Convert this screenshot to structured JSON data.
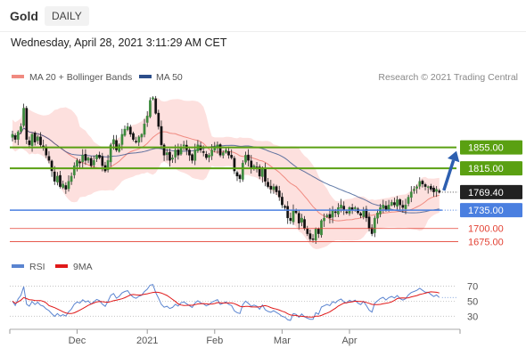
{
  "header": {
    "symbol": "Gold",
    "timeframe": "DAILY",
    "datetime": "Wednesday, April 28, 2021 3:11:29 AM CET"
  },
  "legend": {
    "ma20": {
      "label": "MA 20 + Bollinger Bands",
      "color": "#f08a80"
    },
    "ma50": {
      "label": "MA 50",
      "color": "#2c4e8a"
    },
    "credit": "Research © 2021 Trading Central"
  },
  "colors": {
    "bull": "#3c8a3c",
    "bear": "#111111",
    "band": "#fde0de",
    "resistance": "#5aa012",
    "support": "#4a7fe0",
    "support_minor": "#e34234",
    "arrow": "#2d5fb0",
    "rsi": "#5a84d0",
    "rsi_ma": "#e01818"
  },
  "chart_data": [
    {
      "type": "candlestick",
      "title": "Gold DAILY",
      "x_ticks": [
        "Dec",
        "2021",
        "Feb",
        "Mar",
        "Apr"
      ],
      "ylim": [
        1640,
        1970
      ],
      "overlays": [
        "MA 20 + Bollinger Bands",
        "MA 50"
      ],
      "last_price": 1769.4,
      "levels": [
        {
          "value": 1855.0,
          "label": "1855.00",
          "kind": "resistance"
        },
        {
          "value": 1815.0,
          "label": "1815.00",
          "kind": "resistance"
        },
        {
          "value": 1735.0,
          "label": "1735.00",
          "kind": "support"
        },
        {
          "value": 1700.0,
          "label": "1700.00",
          "kind": "support_minor"
        },
        {
          "value": 1675.0,
          "label": "1675.00",
          "kind": "support_minor"
        }
      ],
      "price_path": [
        1880,
        1870,
        1885,
        1895,
        1930,
        1870,
        1860,
        1880,
        1865,
        1875,
        1860,
        1855,
        1840,
        1830,
        1810,
        1790,
        1800,
        1780,
        1785,
        1775,
        1790,
        1800,
        1820,
        1830,
        1825,
        1840,
        1830,
        1835,
        1820,
        1830,
        1840,
        1835,
        1820,
        1810,
        1830,
        1860,
        1870,
        1850,
        1860,
        1880,
        1890,
        1895,
        1880,
        1870,
        1865,
        1875,
        1880,
        1900,
        1915,
        1945,
        1950,
        1920,
        1895,
        1860,
        1840,
        1845,
        1830,
        1835,
        1850,
        1840,
        1855,
        1860,
        1850,
        1840,
        1830,
        1850,
        1860,
        1850,
        1845,
        1835,
        1840,
        1850,
        1855,
        1860,
        1840,
        1845,
        1850,
        1840,
        1835,
        1810,
        1800,
        1795,
        1825,
        1840,
        1830,
        1815,
        1820,
        1815,
        1800,
        1815,
        1790,
        1780,
        1775,
        1780,
        1770,
        1760,
        1745,
        1740,
        1720,
        1715,
        1735,
        1730,
        1710,
        1720,
        1700,
        1690,
        1680,
        1680,
        1700,
        1690,
        1715,
        1720,
        1725,
        1720,
        1735,
        1730,
        1740,
        1745,
        1735,
        1730,
        1740,
        1735,
        1740,
        1730,
        1725,
        1735,
        1720,
        1700,
        1690,
        1720,
        1730,
        1740,
        1745,
        1735,
        1745,
        1750,
        1745,
        1755,
        1745,
        1740,
        1745,
        1760,
        1770,
        1775,
        1780,
        1790,
        1785,
        1780,
        1780,
        1775,
        1770,
        1775,
        1769
      ],
      "forecast_arrow": {
        "from": 1769.4,
        "to": 1855.0
      }
    },
    {
      "type": "line",
      "title": "RSI",
      "series": [
        {
          "name": "RSI",
          "color": "#5a84d0"
        },
        {
          "name": "9MA",
          "color": "#e01818"
        }
      ],
      "y_ticks": [
        70,
        50,
        30
      ],
      "ylim": [
        15,
        80
      ],
      "last_values": {
        "RSI": 55
      }
    }
  ]
}
